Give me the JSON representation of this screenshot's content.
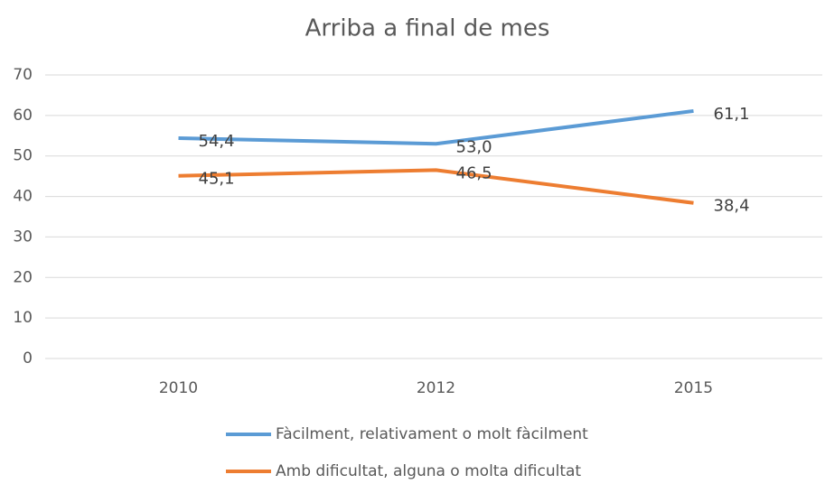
{
  "chart_data": {
    "type": "line",
    "title": "Arriba a final de mes",
    "categories": [
      "2010",
      "2012",
      "2015"
    ],
    "series": [
      {
        "name": "Fàcilment, relativament o molt fàcilment",
        "color": "#5b9bd5",
        "values": [
          54.4,
          53.0,
          61.1
        ],
        "value_labels": [
          "54,4",
          "53,0",
          "61,1"
        ]
      },
      {
        "name": "Amb dificultat, alguna o molta dificultat",
        "color": "#ed7d31",
        "values": [
          45.1,
          46.5,
          38.4
        ],
        "value_labels": [
          "45,1",
          "46,5",
          "38,4"
        ]
      }
    ],
    "ylim": [
      0,
      70
    ],
    "yticks": [
      0,
      10,
      20,
      30,
      40,
      50,
      60,
      70
    ],
    "grid": true
  }
}
